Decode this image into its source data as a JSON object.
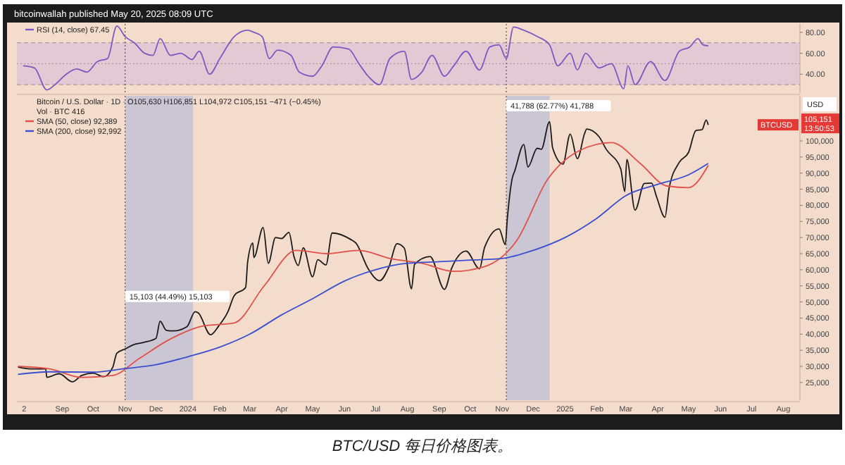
{
  "chart_data": [
    {
      "type": "line",
      "title": "bitcoinwallah published May 20, 2025 08:09 UTC",
      "legend": "top left",
      "tick_labels": "y",
      "xlim": [
        "2023-07-19",
        "2025-08-17"
      ],
      "ylim": [
        22,
        88
      ],
      "yticks": [
        {
          "value": 40,
          "label": "40.00"
        },
        {
          "value": 60,
          "label": "60.00"
        },
        {
          "value": 80,
          "label": "80.00"
        }
      ],
      "bands": [
        {
          "axis": "y",
          "from": 30,
          "to": 70,
          "color": "#dcc0d6"
        }
      ],
      "ref_lines": [
        {
          "axis": "y",
          "value": 70,
          "line_style": "dashed",
          "color": "#9a8a9a"
        },
        {
          "axis": "y",
          "value": 50,
          "line_style": "dotted",
          "color": "#9a8a9a"
        },
        {
          "axis": "y",
          "value": 30,
          "line_style": "dashed",
          "color": "#9a8a9a"
        },
        {
          "axis": "x",
          "value": "2023-11-01",
          "line_style": "dotted",
          "color": "#555555"
        },
        {
          "axis": "x",
          "value": "2024-11-05",
          "line_style": "dotted",
          "color": "#555555"
        }
      ],
      "series": [
        {
          "name": "RSI (14, close) 67.45",
          "color": "#7e57c2",
          "x": [
            "2023-07-25",
            "2023-08-05",
            "2023-08-17",
            "2023-08-25",
            "2023-09-05",
            "2023-09-15",
            "2023-09-25",
            "2023-10-05",
            "2023-10-15",
            "2023-10-24",
            "2023-11-01",
            "2023-11-10",
            "2023-11-20",
            "2023-11-28",
            "2023-12-05",
            "2023-12-15",
            "2023-12-25",
            "2024-01-05",
            "2024-01-12",
            "2024-01-22",
            "2024-02-01",
            "2024-02-15",
            "2024-02-28",
            "2024-03-05",
            "2024-03-13",
            "2024-03-20",
            "2024-03-28",
            "2024-04-10",
            "2024-04-18",
            "2024-05-01",
            "2024-05-10",
            "2024-05-21",
            "2024-06-05",
            "2024-06-15",
            "2024-06-24",
            "2024-07-05",
            "2024-07-15",
            "2024-07-29",
            "2024-08-05",
            "2024-08-15",
            "2024-08-25",
            "2024-09-06",
            "2024-09-15",
            "2024-09-27",
            "2024-10-10",
            "2024-10-20",
            "2024-10-29",
            "2024-11-05",
            "2024-11-12",
            "2024-11-22",
            "2024-12-05",
            "2024-12-17",
            "2024-12-25",
            "2025-01-06",
            "2025-01-13",
            "2025-01-21",
            "2025-02-03",
            "2025-02-15",
            "2025-02-27",
            "2025-03-03",
            "2025-03-10",
            "2025-03-25",
            "2025-04-08",
            "2025-04-22",
            "2025-05-02",
            "2025-05-10",
            "2025-05-15",
            "2025-05-20"
          ],
          "values": [
            48,
            46,
            25,
            30,
            40,
            45,
            42,
            52,
            55,
            86,
            76,
            70,
            60,
            58,
            74,
            58,
            60,
            54,
            62,
            40,
            55,
            76,
            82,
            80,
            76,
            55,
            63,
            58,
            42,
            38,
            48,
            66,
            64,
            50,
            38,
            30,
            55,
            62,
            35,
            42,
            58,
            38,
            48,
            62,
            44,
            66,
            68,
            55,
            85,
            82,
            76,
            68,
            48,
            60,
            44,
            60,
            46,
            50,
            26,
            48,
            30,
            52,
            34,
            62,
            66,
            74,
            68,
            67
          ]
        }
      ]
    },
    {
      "type": "line",
      "title": "Bitcoin / U.S. Dollar · 1D · O105,630 H106,851 L104,972 C105,151 −471 (−0.45%)",
      "legend": "top left",
      "xlim": [
        "2023-07-19",
        "2025-08-17"
      ],
      "ylim": [
        19500,
        114000
      ],
      "xticks": [
        {
          "value": "2023-07-26",
          "label": "2"
        },
        {
          "value": "2023-09-01",
          "label": "Sep"
        },
        {
          "value": "2023-10-01",
          "label": "Oct"
        },
        {
          "value": "2023-11-01",
          "label": "Nov"
        },
        {
          "value": "2023-12-01",
          "label": "Dec"
        },
        {
          "value": "2024-01-01",
          "label": "2024"
        },
        {
          "value": "2024-02-01",
          "label": "Feb"
        },
        {
          "value": "2024-03-01",
          "label": "Mar"
        },
        {
          "value": "2024-04-01",
          "label": "Apr"
        },
        {
          "value": "2024-05-01",
          "label": "May"
        },
        {
          "value": "2024-06-01",
          "label": "Jun"
        },
        {
          "value": "2024-07-01",
          "label": "Jul"
        },
        {
          "value": "2024-08-01",
          "label": "Aug"
        },
        {
          "value": "2024-09-01",
          "label": "Sep"
        },
        {
          "value": "2024-10-01",
          "label": "Oct"
        },
        {
          "value": "2024-11-01",
          "label": "Nov"
        },
        {
          "value": "2024-12-01",
          "label": "Dec"
        },
        {
          "value": "2025-01-01",
          "label": "2025"
        },
        {
          "value": "2025-02-01",
          "label": "Feb"
        },
        {
          "value": "2025-03-01",
          "label": "Mar"
        },
        {
          "value": "2025-04-01",
          "label": "Apr"
        },
        {
          "value": "2025-05-01",
          "label": "May"
        },
        {
          "value": "2025-06-01",
          "label": "Jun"
        },
        {
          "value": "2025-07-01",
          "label": "Jul"
        },
        {
          "value": "2025-08-01",
          "label": "Aug"
        }
      ],
      "yticks": [
        {
          "value": 25000,
          "label": "25,000"
        },
        {
          "value": 30000,
          "label": "30,000"
        },
        {
          "value": 35000,
          "label": "35,000"
        },
        {
          "value": 40000,
          "label": "40,000"
        },
        {
          "value": 45000,
          "label": "45,000"
        },
        {
          "value": 50000,
          "label": "50,000"
        },
        {
          "value": 55000,
          "label": "55,000"
        },
        {
          "value": 60000,
          "label": "60,000"
        },
        {
          "value": 65000,
          "label": "65,000"
        },
        {
          "value": 70000,
          "label": "70,000"
        },
        {
          "value": 75000,
          "label": "75,000"
        },
        {
          "value": 80000,
          "label": "80,000"
        },
        {
          "value": 85000,
          "label": "85,000"
        },
        {
          "value": 90000,
          "label": "90,000"
        },
        {
          "value": 95000,
          "label": "95,000"
        },
        {
          "value": 100000,
          "label": "100,000"
        }
      ],
      "bands": [
        {
          "axis": "x",
          "from": "2023-11-01",
          "to": "2024-01-06",
          "color": "#aab4dc"
        },
        {
          "axis": "x",
          "from": "2024-11-05",
          "to": "2024-12-17",
          "color": "#aab4dc"
        }
      ],
      "ref_lines": [
        {
          "axis": "x",
          "value": "2023-11-01",
          "line_style": "dotted",
          "color": "#555555"
        },
        {
          "axis": "x",
          "value": "2024-11-05",
          "line_style": "dotted",
          "color": "#555555"
        }
      ],
      "annotations": [
        {
          "text": "15,103 (44.49%) 15,103",
          "x": "2023-11-01",
          "y": 49100
        },
        {
          "text": "41,788 (62.77%) 41,788",
          "x": "2024-11-05",
          "y": 108300
        },
        "Vol · BTC 416",
        "USD",
        "BTCUSD",
        "105,151",
        "13:50:53",
        "BTC/USD 每日价格图表。"
      ],
      "series": [
        {
          "color": "#1a1a1a",
          "x": [
            "2023-07-20",
            "2023-08-01",
            "2023-08-16",
            "2023-08-17",
            "2023-08-29",
            "2023-09-11",
            "2023-09-20",
            "2023-10-01",
            "2023-10-11",
            "2023-10-20",
            "2023-10-24",
            "2023-11-01",
            "2023-11-09",
            "2023-11-20",
            "2023-12-01",
            "2023-12-05",
            "2023-12-11",
            "2023-12-18",
            "2023-12-31",
            "2024-01-08",
            "2024-01-11",
            "2024-01-23",
            "2024-01-31",
            "2024-02-09",
            "2024-02-15",
            "2024-02-26",
            "2024-02-28",
            "2024-03-04",
            "2024-03-05",
            "2024-03-14",
            "2024-03-19",
            "2024-03-26",
            "2024-04-01",
            "2024-04-08",
            "2024-04-13",
            "2024-04-17",
            "2024-04-22",
            "2024-05-01",
            "2024-05-06",
            "2024-05-14",
            "2024-05-20",
            "2024-06-07",
            "2024-06-12",
            "2024-06-24",
            "2024-07-05",
            "2024-07-14",
            "2024-07-22",
            "2024-07-29",
            "2024-08-05",
            "2024-08-08",
            "2024-08-23",
            "2024-09-06",
            "2024-09-13",
            "2024-09-27",
            "2024-10-10",
            "2024-10-15",
            "2024-10-29",
            "2024-11-04",
            "2024-11-06",
            "2024-11-11",
            "2024-11-13",
            "2024-11-22",
            "2024-11-26",
            "2024-12-05",
            "2024-12-09",
            "2024-12-17",
            "2024-12-20",
            "2024-12-30",
            "2025-01-06",
            "2025-01-13",
            "2025-01-20",
            "2025-01-22",
            "2025-02-03",
            "2025-02-10",
            "2025-02-24",
            "2025-02-28",
            "2025-03-02",
            "2025-03-10",
            "2025-03-19",
            "2025-03-26",
            "2025-03-31",
            "2025-04-08",
            "2025-04-12",
            "2025-04-22",
            "2025-05-01",
            "2025-05-08",
            "2025-05-14",
            "2025-05-18",
            "2025-05-20"
          ],
          "values": [
            29800,
            29200,
            29200,
            26600,
            27700,
            25200,
            27200,
            27900,
            26800,
            29700,
            34100,
            35400,
            36700,
            37500,
            38700,
            44000,
            41200,
            41000,
            42300,
            47000,
            46600,
            39800,
            42600,
            47100,
            52000,
            54500,
            62500,
            68300,
            63800,
            73100,
            62000,
            70000,
            69700,
            71600,
            64000,
            61300,
            66800,
            57800,
            63100,
            61500,
            71400,
            69400,
            68300,
            60300,
            56600,
            60800,
            68100,
            66700,
            54100,
            61700,
            64100,
            53900,
            60500,
            65800,
            60300,
            67000,
            72700,
            67800,
            75800,
            88700,
            90500,
            98900,
            91900,
            97700,
            97400,
            106000,
            97800,
            92800,
            102100,
            94500,
            102300,
            103700,
            101300,
            97400,
            91400,
            84300,
            94200,
            78500,
            86800,
            86900,
            82500,
            76300,
            85300,
            93400,
            96500,
            103200,
            103500,
            106500,
            105000
          ]
        },
        {
          "name": "SMA (50, close) 92,389",
          "color": "#e0504a",
          "x": [
            "2023-07-20",
            "2023-08-20",
            "2023-09-20",
            "2023-10-20",
            "2023-11-15",
            "2023-12-15",
            "2024-01-15",
            "2024-02-15",
            "2024-03-15",
            "2024-04-15",
            "2024-05-15",
            "2024-06-15",
            "2024-07-15",
            "2024-08-15",
            "2024-09-15",
            "2024-10-15",
            "2024-11-15",
            "2024-12-15",
            "2025-01-15",
            "2025-02-15",
            "2025-03-15",
            "2025-04-10",
            "2025-05-01",
            "2025-05-20"
          ],
          "values": [
            30000,
            29200,
            26600,
            27200,
            32500,
            38500,
            42500,
            43500,
            55000,
            66000,
            65000,
            66000,
            63500,
            62000,
            59500,
            61000,
            69000,
            88000,
            97000,
            99500,
            93000,
            86000,
            85500,
            92400
          ]
        },
        {
          "name": "SMA (200, close) 92,992",
          "color": "#3a4fd0",
          "x": [
            "2023-07-20",
            "2023-08-20",
            "2023-10-01",
            "2023-11-01",
            "2023-12-01",
            "2024-01-01",
            "2024-02-01",
            "2024-03-01",
            "2024-04-01",
            "2024-05-01",
            "2024-06-01",
            "2024-07-01",
            "2024-08-01",
            "2024-09-01",
            "2024-10-01",
            "2024-11-01",
            "2024-12-01",
            "2025-01-01",
            "2025-02-01",
            "2025-03-01",
            "2025-04-01",
            "2025-05-01",
            "2025-05-20"
          ],
          "values": [
            27500,
            28300,
            28200,
            29300,
            30500,
            33000,
            36000,
            40000,
            46000,
            51000,
            56500,
            60000,
            62000,
            62500,
            63000,
            63500,
            66000,
            70000,
            76000,
            83000,
            86500,
            89500,
            93000
          ]
        }
      ]
    }
  ]
}
